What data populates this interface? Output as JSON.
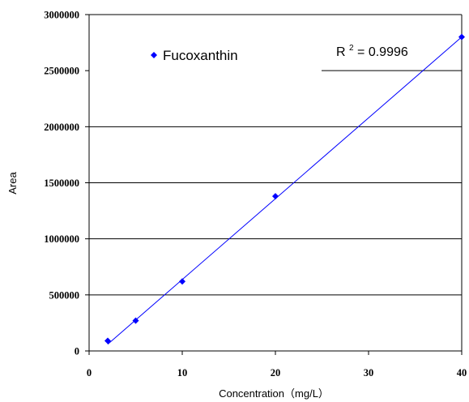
{
  "chart_data": {
    "type": "scatter",
    "title": "",
    "xlabel": "Concentration（mg/L）",
    "ylabel": "Area",
    "xlim": [
      0,
      40
    ],
    "ylim": [
      0,
      3000000
    ],
    "x_ticks": [
      0,
      10,
      20,
      30,
      40
    ],
    "y_ticks": [
      0,
      500000,
      1000000,
      1500000,
      2000000,
      2500000,
      3000000
    ],
    "x_tick_labels": [
      "0",
      "10",
      "20",
      "30",
      "40"
    ],
    "y_tick_labels": [
      "0",
      "500000",
      "1000000",
      "1500000",
      "2000000",
      "2500000",
      "3000000"
    ],
    "grid": "horizontal",
    "legend": {
      "placement": "top-left",
      "entries": [
        "Fucoxanthin"
      ]
    },
    "series": [
      {
        "name": "Fucoxanthin",
        "color": "#0000ff",
        "marker": "diamond",
        "points": [
          {
            "x": 2,
            "y": 90000
          },
          {
            "x": 5,
            "y": 270000
          },
          {
            "x": 10,
            "y": 620000
          },
          {
            "x": 20,
            "y": 1380000
          },
          {
            "x": 40,
            "y": 2800000
          }
        ]
      }
    ],
    "trendline": {
      "type": "linear",
      "color": "#0000ff",
      "x_range": [
        2,
        40
      ],
      "y_range": [
        60000,
        2800000
      ]
    },
    "annotations": [
      {
        "label_base": "R",
        "label_sup": "2",
        "label_rest": " = 0.9996"
      }
    ]
  }
}
